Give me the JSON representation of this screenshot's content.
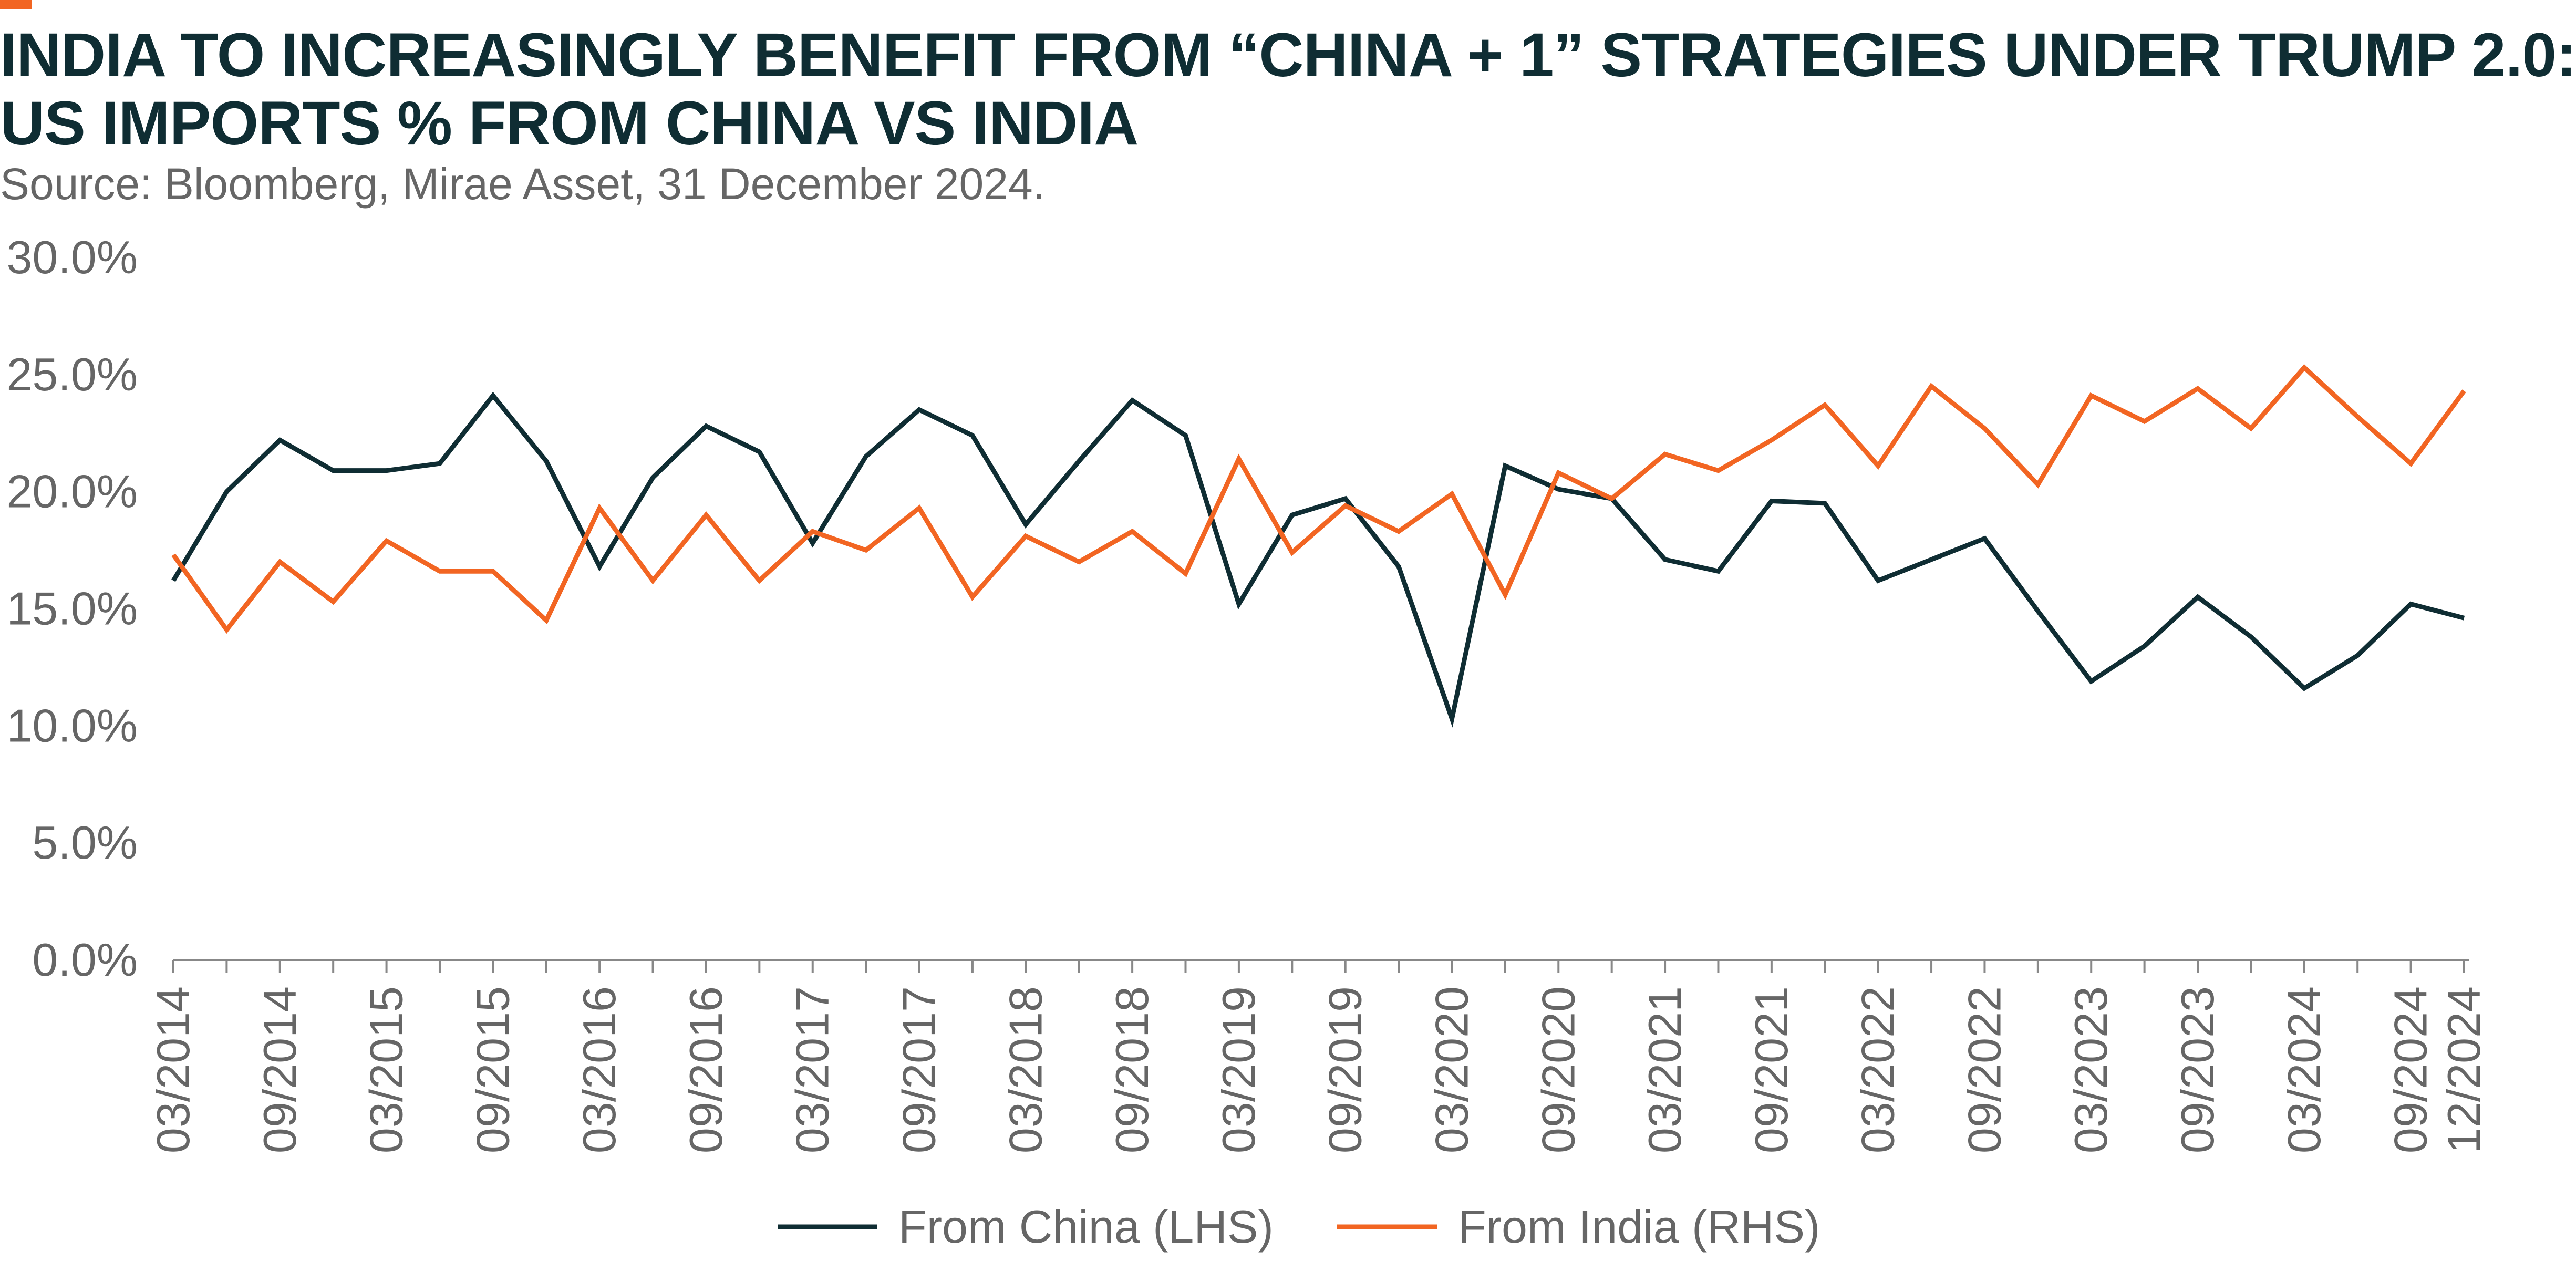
{
  "header": {
    "title_line1": "INDIA TO INCREASINGLY BENEFIT FROM “CHINA + 1” STRATEGIES UNDER TRUMP 2.0:",
    "title_line2": "US IMPORTS % FROM CHINA VS INDIA",
    "source": "Source: Bloomberg, Mirae Asset, 31 December 2024."
  },
  "colors": {
    "accent": "#f26522",
    "china": "#0f2d33",
    "india": "#f26522",
    "axis": "#888888",
    "text": "#666666"
  },
  "chart_data": {
    "type": "line",
    "title": "INDIA TO INCREASINGLY BENEFIT FROM “CHINA + 1” STRATEGIES UNDER TRUMP 2.0: US IMPORTS % FROM CHINA VS INDIA",
    "xlabel": "",
    "ylabel": "",
    "ylim": [
      0,
      30
    ],
    "yticks": [
      "0.0%",
      "5.0%",
      "10.0%",
      "15.0%",
      "20.0%",
      "25.0%",
      "30.0%"
    ],
    "x": [
      "03/2014",
      "06/2014",
      "09/2014",
      "12/2014",
      "03/2015",
      "06/2015",
      "09/2015",
      "12/2015",
      "03/2016",
      "06/2016",
      "09/2016",
      "12/2016",
      "03/2017",
      "06/2017",
      "09/2017",
      "12/2017",
      "03/2018",
      "06/2018",
      "09/2018",
      "12/2018",
      "03/2019",
      "06/2019",
      "09/2019",
      "12/2019",
      "03/2020",
      "06/2020",
      "09/2020",
      "12/2020",
      "03/2021",
      "06/2021",
      "09/2021",
      "12/2021",
      "03/2022",
      "06/2022",
      "09/2022",
      "12/2022",
      "03/2023",
      "06/2023",
      "09/2023",
      "12/2023",
      "03/2024",
      "06/2024",
      "09/2024",
      "12/2024"
    ],
    "xtick_labels": [
      "03/2014",
      "09/2014",
      "03/2015",
      "09/2015",
      "03/2016",
      "09/2016",
      "03/2017",
      "09/2017",
      "03/2018",
      "09/2018",
      "03/2019",
      "09/2019",
      "03/2020",
      "09/2020",
      "03/2021",
      "09/2021",
      "03/2022",
      "09/2022",
      "03/2023",
      "09/2023",
      "03/2024",
      "09/2024",
      "12/2024"
    ],
    "grid": false,
    "legend_position": "bottom-center",
    "series": [
      {
        "name": "From China (LHS)",
        "color": "#0f2d33",
        "values": [
          16.2,
          20.0,
          22.2,
          20.9,
          20.9,
          21.2,
          24.1,
          21.3,
          16.8,
          20.6,
          22.8,
          21.7,
          17.8,
          21.5,
          23.5,
          22.4,
          18.6,
          21.3,
          23.9,
          22.4,
          15.2,
          19.0,
          19.7,
          16.8,
          10.3,
          21.1,
          20.1,
          19.7,
          17.1,
          16.6,
          19.6,
          19.5,
          16.2,
          17.1,
          18.0,
          14.9,
          11.9,
          13.4,
          15.5,
          13.8,
          11.6,
          13.0,
          15.2,
          14.6
        ]
      },
      {
        "name": "From India (RHS)",
        "color": "#f26522",
        "values": [
          17.3,
          14.1,
          17.0,
          15.3,
          17.9,
          16.6,
          16.6,
          14.5,
          19.3,
          16.2,
          19.0,
          16.2,
          18.3,
          17.5,
          19.3,
          15.5,
          18.1,
          17.0,
          18.3,
          16.5,
          21.4,
          17.4,
          19.4,
          18.3,
          19.9,
          15.6,
          20.8,
          19.7,
          21.6,
          20.9,
          22.2,
          23.7,
          21.1,
          24.5,
          22.7,
          20.3,
          24.1,
          23.0,
          24.4,
          22.7,
          25.3,
          23.2,
          21.2,
          24.3
        ]
      }
    ]
  }
}
